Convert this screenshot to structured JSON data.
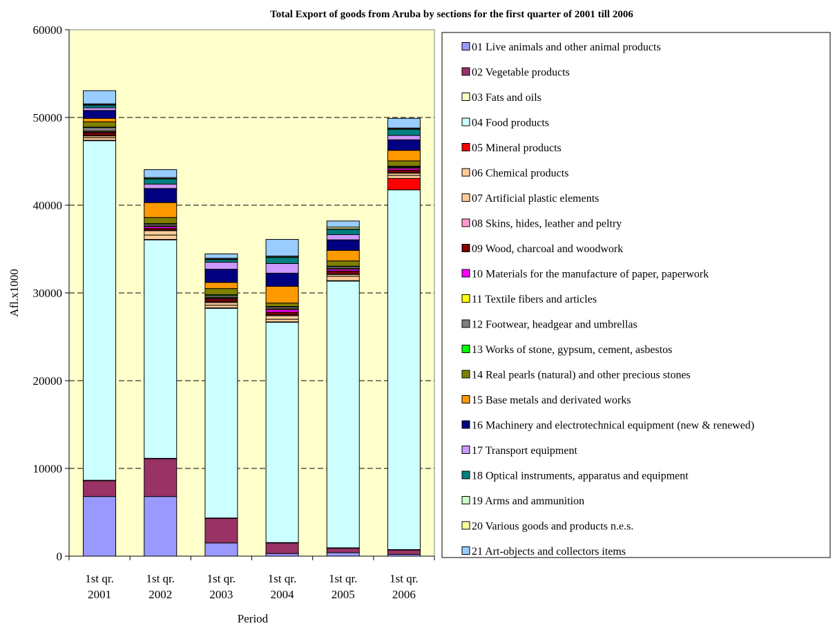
{
  "chart_data": {
    "type": "bar",
    "stacked": true,
    "title": "Total Export of goods from Aruba by sections for the first quarter of 2001 till 2006",
    "xlabel": "Period",
    "ylabel": "Afl.x1000",
    "ylim": [
      0,
      60000
    ],
    "yticks": [
      0,
      10000,
      20000,
      30000,
      40000,
      50000,
      60000
    ],
    "grid": "horizontal-dashed",
    "legend_position": "right",
    "categories": [
      [
        "1st qr.",
        "2001"
      ],
      [
        "1st qr.",
        "2002"
      ],
      [
        "1st qr.",
        "2003"
      ],
      [
        "1st qr.",
        "2004"
      ],
      [
        "1st qr.",
        "2005"
      ],
      [
        "1st qr.",
        "2006"
      ]
    ],
    "series": [
      {
        "name": "01 Live animals and other animal products",
        "color": "#9999FF",
        "values": [
          6800,
          6800,
          1500,
          300,
          400,
          200
        ]
      },
      {
        "name": "02 Vegetable products",
        "color": "#993366",
        "values": [
          1800,
          4300,
          2800,
          1200,
          500,
          500
        ]
      },
      {
        "name": "03 Fats and oils",
        "color": "#FFFFCC",
        "values": [
          50,
          50,
          50,
          50,
          50,
          50
        ]
      },
      {
        "name": "04 Food products",
        "color": "#CCFFFF",
        "values": [
          38700,
          24900,
          23900,
          25100,
          30400,
          41000
        ]
      },
      {
        "name": "05 Mineral products",
        "color": "#FF0000",
        "values": [
          50,
          50,
          50,
          50,
          50,
          1300
        ]
      },
      {
        "name": "06 Chemical products",
        "color": "#FFCC99",
        "values": [
          300,
          500,
          300,
          300,
          500,
          350
        ]
      },
      {
        "name": "07 Artificial plastic elements",
        "color": "#FFCC99",
        "values": [
          200,
          500,
          300,
          400,
          200,
          250
        ]
      },
      {
        "name": "08 Skins, hides, leather and peltry",
        "color": "#FF99CC",
        "values": [
          50,
          50,
          100,
          100,
          100,
          50
        ]
      },
      {
        "name": "09 Wood, charcoal and woodwork",
        "color": "#800000",
        "values": [
          300,
          200,
          300,
          300,
          300,
          300
        ]
      },
      {
        "name": "10 Materials for the manufacture of paper, paperwork",
        "color": "#FF00FF",
        "values": [
          100,
          200,
          100,
          300,
          200,
          200
        ]
      },
      {
        "name": "11 Textile fibers and articles",
        "color": "#FFFF00",
        "values": [
          100,
          100,
          100,
          100,
          100,
          100
        ]
      },
      {
        "name": "12 Footwear, headgear and umbrellas",
        "color": "#808080",
        "values": [
          400,
          200,
          200,
          200,
          200,
          100
        ]
      },
      {
        "name": "13 Works of stone, gypsum, cement, asbestos",
        "color": "#00FF00",
        "values": [
          50,
          50,
          100,
          50,
          50,
          50
        ]
      },
      {
        "name": "14 Real pearls (natural) and other precious stones",
        "color": "#808000",
        "values": [
          600,
          700,
          700,
          400,
          600,
          600
        ]
      },
      {
        "name": "15 Base metals and derivated works",
        "color": "#FF9900",
        "values": [
          400,
          1700,
          700,
          1900,
          1200,
          1200
        ]
      },
      {
        "name": "16 Machinery and electrotechnical equipment (new & renewed)",
        "color": "#000080",
        "values": [
          900,
          1600,
          1500,
          1500,
          1200,
          1200
        ]
      },
      {
        "name": "17 Transport equipment",
        "color": "#CC99FF",
        "values": [
          300,
          500,
          800,
          1100,
          600,
          500
        ]
      },
      {
        "name": "18 Optical instruments, apparatus and equipment",
        "color": "#008080",
        "values": [
          300,
          600,
          300,
          700,
          600,
          700
        ]
      },
      {
        "name": "19 Arms and ammunition",
        "color": "#CCFFCC",
        "values": [
          50,
          50,
          50,
          50,
          50,
          50
        ]
      },
      {
        "name": "20 Various goods and products n.e.s.",
        "color": "#FFFF99",
        "values": [
          100,
          100,
          100,
          100,
          200,
          100
        ]
      },
      {
        "name": "21 Art-objects and collectors items",
        "color": "#99CCFF",
        "values": [
          1500,
          900,
          500,
          1900,
          700,
          1100
        ]
      }
    ]
  }
}
